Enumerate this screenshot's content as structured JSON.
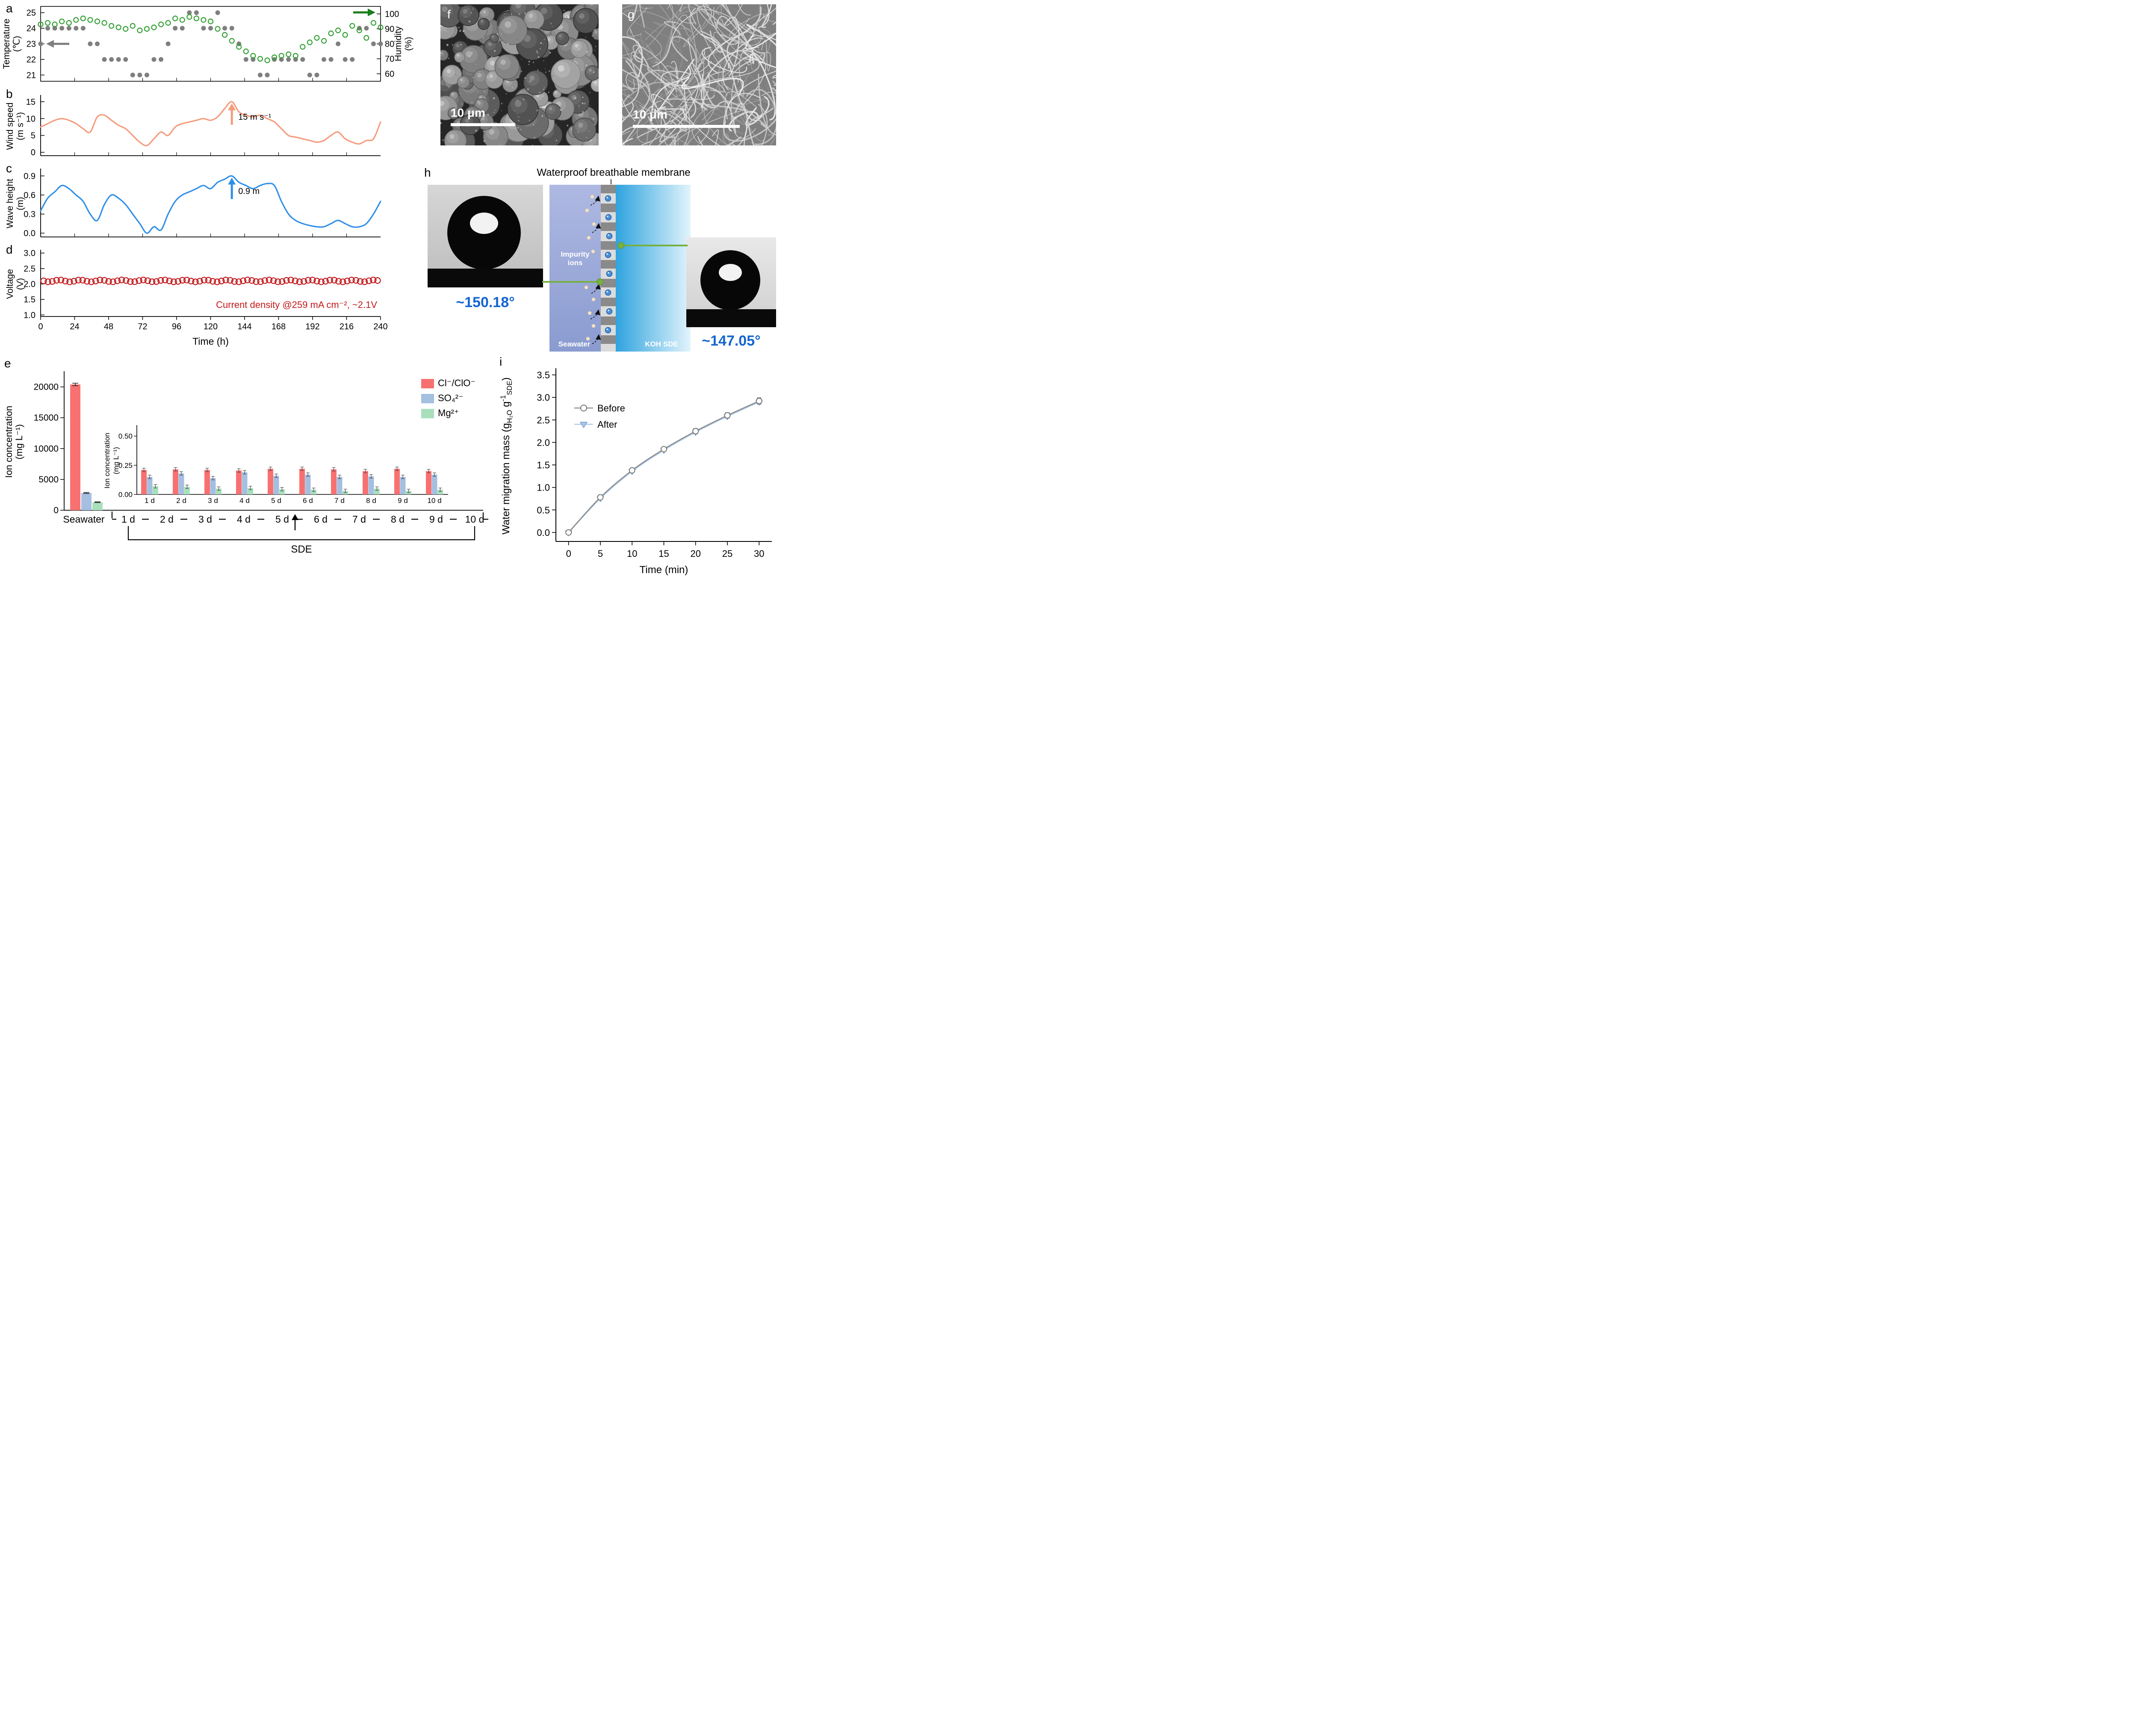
{
  "labels": {
    "a": "a",
    "b": "b",
    "c": "c",
    "d": "d",
    "e": "e",
    "f": "f",
    "g": "g",
    "h": "h",
    "i": "i"
  },
  "panel_f": {
    "scale": "10 μm"
  },
  "panel_g": {
    "scale": "10 μm"
  },
  "panel_h": {
    "title": "Waterproof breathable membrane",
    "impurity_line1": "Impurity",
    "impurity_line2": "ions",
    "seawater": "Seawater",
    "koh": "KOH SDE",
    "left_angle": "~150.18°",
    "right_angle": "~147.05°"
  },
  "chart_data": [
    {
      "id": "temperature_humidity",
      "type": "scatter",
      "x_step": 5,
      "x_max": 240,
      "left_axis": {
        "label_line1": "Temperature",
        "label_line2": "(℃)",
        "ticks": [
          21,
          22,
          23,
          24,
          25
        ],
        "min": 20.6,
        "max": 25.4
      },
      "right_axis": {
        "label_line1": "Humidity",
        "label_line2": "(%)",
        "ticks": [
          60,
          70,
          80,
          90,
          100
        ],
        "min": 55,
        "max": 105
      },
      "series": [
        {
          "name": "Temperature",
          "color": "#7f7f7f",
          "marker": "filled-circle",
          "values": [
            23,
            24,
            24,
            24,
            24,
            24,
            24,
            23,
            23,
            22,
            22,
            22,
            22,
            21,
            21,
            21,
            22,
            22,
            23,
            24,
            24,
            25,
            25,
            24,
            24,
            25,
            24,
            24,
            23,
            22,
            22,
            21,
            21,
            22,
            22,
            22,
            22,
            22,
            21,
            21,
            22,
            22,
            23,
            22,
            22,
            24,
            24,
            23,
            23
          ]
        },
        {
          "name": "Humidity",
          "color": "#2F9E2F",
          "marker": "open-circle",
          "values": [
            93,
            94,
            93,
            95,
            94,
            96,
            97,
            96,
            95,
            94,
            92,
            91,
            90,
            92,
            89,
            90,
            91,
            93,
            94,
            97,
            96,
            98,
            97,
            96,
            95,
            90,
            86,
            82,
            78,
            75,
            72,
            70,
            69,
            71,
            72,
            73,
            72,
            78,
            81,
            84,
            82,
            87,
            89,
            86,
            92,
            89,
            84,
            94,
            91
          ]
        }
      ]
    },
    {
      "id": "wind_speed",
      "type": "line",
      "x_step": 5,
      "x_max": 240,
      "ylabel_line1": "Wind speed",
      "ylabel_line2": "(m s⁻¹)",
      "yticks": [
        "0",
        "5",
        "10",
        "15"
      ],
      "ymin": -1,
      "ymax": 16.5,
      "color": "#F59B7C",
      "values": [
        7.5,
        8.5,
        9.5,
        10,
        9.5,
        8.5,
        7,
        6,
        10.5,
        11,
        9.5,
        8,
        7,
        5,
        3,
        2,
        4,
        6,
        5,
        7.5,
        8.5,
        9,
        9.5,
        10,
        9.5,
        10.5,
        13,
        15,
        12,
        11,
        10.5,
        11,
        10,
        9,
        7,
        5,
        4.5,
        4,
        3.5,
        3,
        3.5,
        5,
        6,
        4,
        3,
        2.5,
        3.5,
        4,
        9
      ],
      "annotation": {
        "text": "15 m s⁻¹",
        "t": 135,
        "value": 15
      }
    },
    {
      "id": "wave_height",
      "type": "line",
      "x_step": 5,
      "x_max": 240,
      "ylabel_line1": "Wave height",
      "ylabel_line2": "(m)",
      "yticks": [
        "0.0",
        "0.3",
        "0.6",
        "0.9"
      ],
      "ymin": -0.06,
      "ymax": 0.99,
      "color": "#2F8FE8",
      "values": [
        0.35,
        0.55,
        0.65,
        0.75,
        0.7,
        0.6,
        0.5,
        0.3,
        0.2,
        0.45,
        0.6,
        0.55,
        0.45,
        0.3,
        0.15,
        0.0,
        0.1,
        0.05,
        0.3,
        0.5,
        0.6,
        0.65,
        0.7,
        0.75,
        0.7,
        0.8,
        0.85,
        0.9,
        0.8,
        0.75,
        0.7,
        0.75,
        0.78,
        0.75,
        0.5,
        0.3,
        0.2,
        0.15,
        0.12,
        0.1,
        0.1,
        0.15,
        0.2,
        0.15,
        0.1,
        0.1,
        0.15,
        0.3,
        0.5
      ],
      "annotation": {
        "text": "0.9 m",
        "t": 135,
        "value": 0.9
      }
    },
    {
      "id": "voltage",
      "type": "scatter",
      "ylabel_line1": "Voltage",
      "ylabel_line2": "(V)",
      "yticks": [
        "1.0",
        "1.5",
        "2.0",
        "2.5",
        "3.0"
      ],
      "ymin": 0.95,
      "ymax": 3.05,
      "value": 2.1,
      "count": 78,
      "color": "#C2181B",
      "xticks": [
        0,
        24,
        48,
        72,
        96,
        120,
        144,
        168,
        192,
        216,
        240
      ],
      "xlabel": "Time (h)",
      "annotation": "Current density @259 mA cm⁻²,  ~2.1V"
    },
    {
      "id": "ion_concentration",
      "type": "bar",
      "ylabel_line1": "Ion concentration",
      "ylabel_line2": "(mg L⁻¹)",
      "yticks": [
        0,
        5000,
        10000,
        15000,
        20000
      ],
      "categories": [
        "Seawater",
        "1 d",
        "2 d",
        "3 d",
        "4 d",
        "5 d",
        "6 d",
        "7 d",
        "8 d",
        "9 d",
        "10 d"
      ],
      "legend": [
        {
          "label": "Cl⁻/ClO⁻",
          "color": "#F87171"
        },
        {
          "label": "SO₄²⁻",
          "color": "#A4BFE0"
        },
        {
          "label": "Mg²⁺",
          "color": "#A8E0BC"
        }
      ],
      "seawater": {
        "cl": 20400,
        "so4": 2800,
        "mg": 1300
      },
      "inset": {
        "ylabel_line1": "Ion concentration",
        "ylabel_line2": "(mg L⁻¹)",
        "yticks": [
          "0.00",
          "0.25",
          "0.50"
        ],
        "days": [
          "1 d",
          "2 d",
          "3 d",
          "4 d",
          "5 d",
          "6 d",
          "7 d",
          "8 d",
          "9 d",
          "10 d"
        ],
        "cl": [
          0.21,
          0.215,
          0.21,
          0.205,
          0.22,
          0.22,
          0.215,
          0.2,
          0.22,
          0.2
        ],
        "so4": [
          0.15,
          0.18,
          0.14,
          0.19,
          0.16,
          0.17,
          0.15,
          0.155,
          0.15,
          0.17
        ],
        "mg": [
          0.07,
          0.065,
          0.05,
          0.055,
          0.045,
          0.04,
          0.03,
          0.05,
          0.03,
          0.04
        ],
        "err": 0.015
      },
      "sde_label": "SDE"
    },
    {
      "id": "water_migration",
      "type": "line",
      "x": [
        0,
        5,
        10,
        15,
        20,
        25,
        30
      ],
      "series": [
        {
          "name": "Before",
          "color": "#8a8a8a",
          "marker": "open-circle",
          "values": [
            0,
            0.78,
            1.38,
            1.85,
            2.25,
            2.6,
            2.92
          ]
        },
        {
          "name": "After",
          "color": "#A9C6EA",
          "marker": "filled-triangle-down",
          "values": [
            0,
            0.76,
            1.36,
            1.83,
            2.23,
            2.58,
            2.9
          ]
        }
      ],
      "errors": [
        0.03,
        0.05,
        0.05,
        0.05,
        0.06,
        0.06,
        0.07
      ],
      "yticks": [
        "0.0",
        "0.5",
        "1.0",
        "1.5",
        "2.0",
        "2.5",
        "3.0",
        "3.5"
      ],
      "xticks": [
        0,
        5,
        10,
        15,
        20,
        25,
        30
      ],
      "xlabel": "Time (min)",
      "ylabel_parts": {
        "p1": "Water migration mass (g",
        "sub1": "H₂O",
        "p2": " g",
        "sup1": "-1",
        "sub2": "SDE",
        "p3": ")"
      }
    }
  ]
}
